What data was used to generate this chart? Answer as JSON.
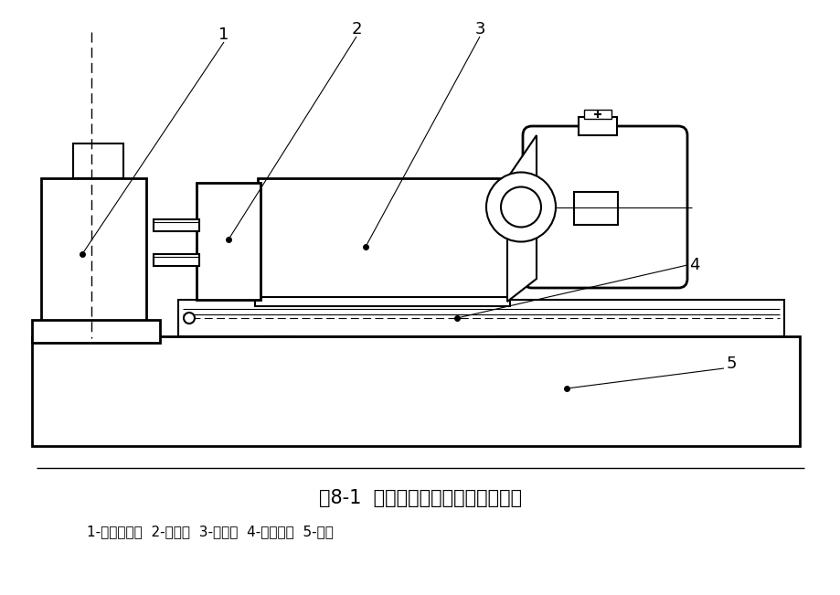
{
  "title": "图8-1  组合机床液压动力滑台的组成",
  "subtitle": "1-夹具及工件  2-主轴箱  3-动力头  4-动力滑台  5-床身",
  "bg_color": "#ffffff",
  "line_color": "#000000",
  "title_fontsize": 15,
  "subtitle_fontsize": 11
}
